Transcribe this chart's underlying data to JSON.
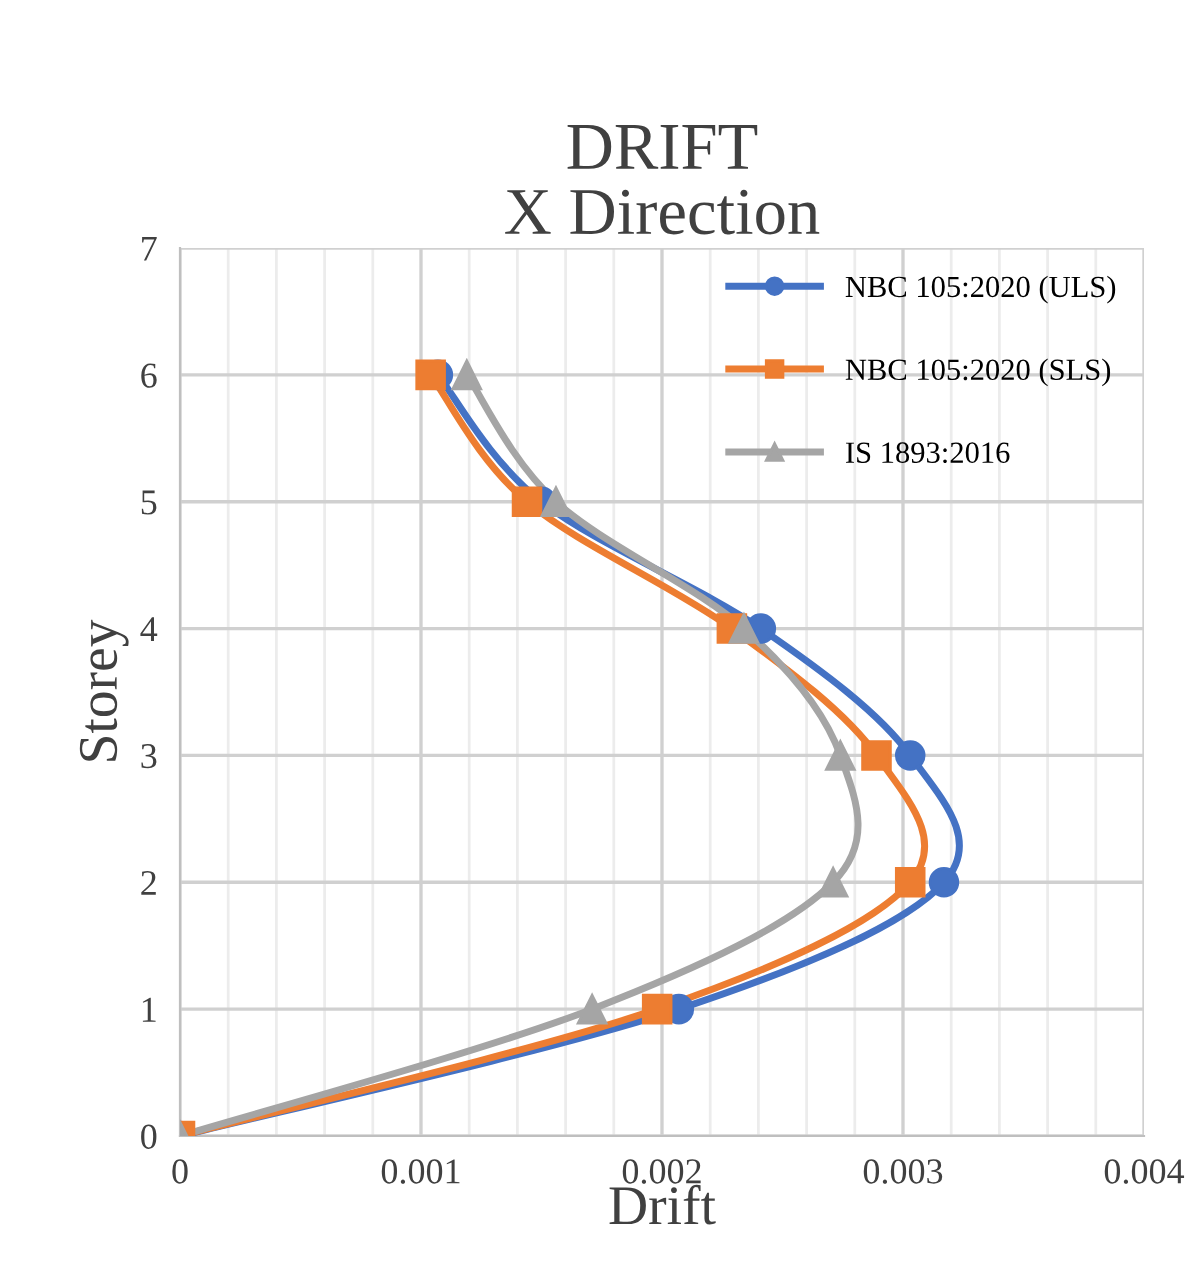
{
  "chart_data": {
    "type": "line",
    "title": "DRIFT\nX Direction",
    "xlabel": "Drift",
    "ylabel": "Storey",
    "series": [
      {
        "name": "NBC 105:2020 (ULS)",
        "color": "#4472c4",
        "marker": "circle",
        "x": [
          0,
          0.00207,
          0.00317,
          0.00303,
          0.00241,
          0.0015,
          0.00107
        ],
        "values": [
          0,
          1,
          2,
          3,
          4,
          5,
          6
        ]
      },
      {
        "name": "NBC 105:2020 (SLS)",
        "color": "#ed7d31",
        "marker": "square",
        "x": [
          0,
          0.00198,
          0.00303,
          0.00289,
          0.00229,
          0.00144,
          0.00104
        ],
        "values": [
          0,
          1,
          2,
          3,
          4,
          5,
          6
        ]
      },
      {
        "name": "IS 1893:2016",
        "color": "#a5a5a5",
        "marker": "triangle",
        "x": [
          0,
          0.00171,
          0.00271,
          0.00274,
          0.00234,
          0.00156,
          0.00119
        ],
        "values": [
          0,
          1,
          2,
          3,
          4,
          5,
          6
        ]
      }
    ],
    "xlim": [
      0,
      0.004
    ],
    "xticks": [
      0,
      0.001,
      0.002,
      0.003,
      0.004
    ],
    "ylim": [
      0,
      7
    ],
    "yticks": [
      0,
      1,
      2,
      3,
      4,
      5,
      6,
      7
    ],
    "grid": true,
    "legend": "top right",
    "line_style": "solid"
  }
}
